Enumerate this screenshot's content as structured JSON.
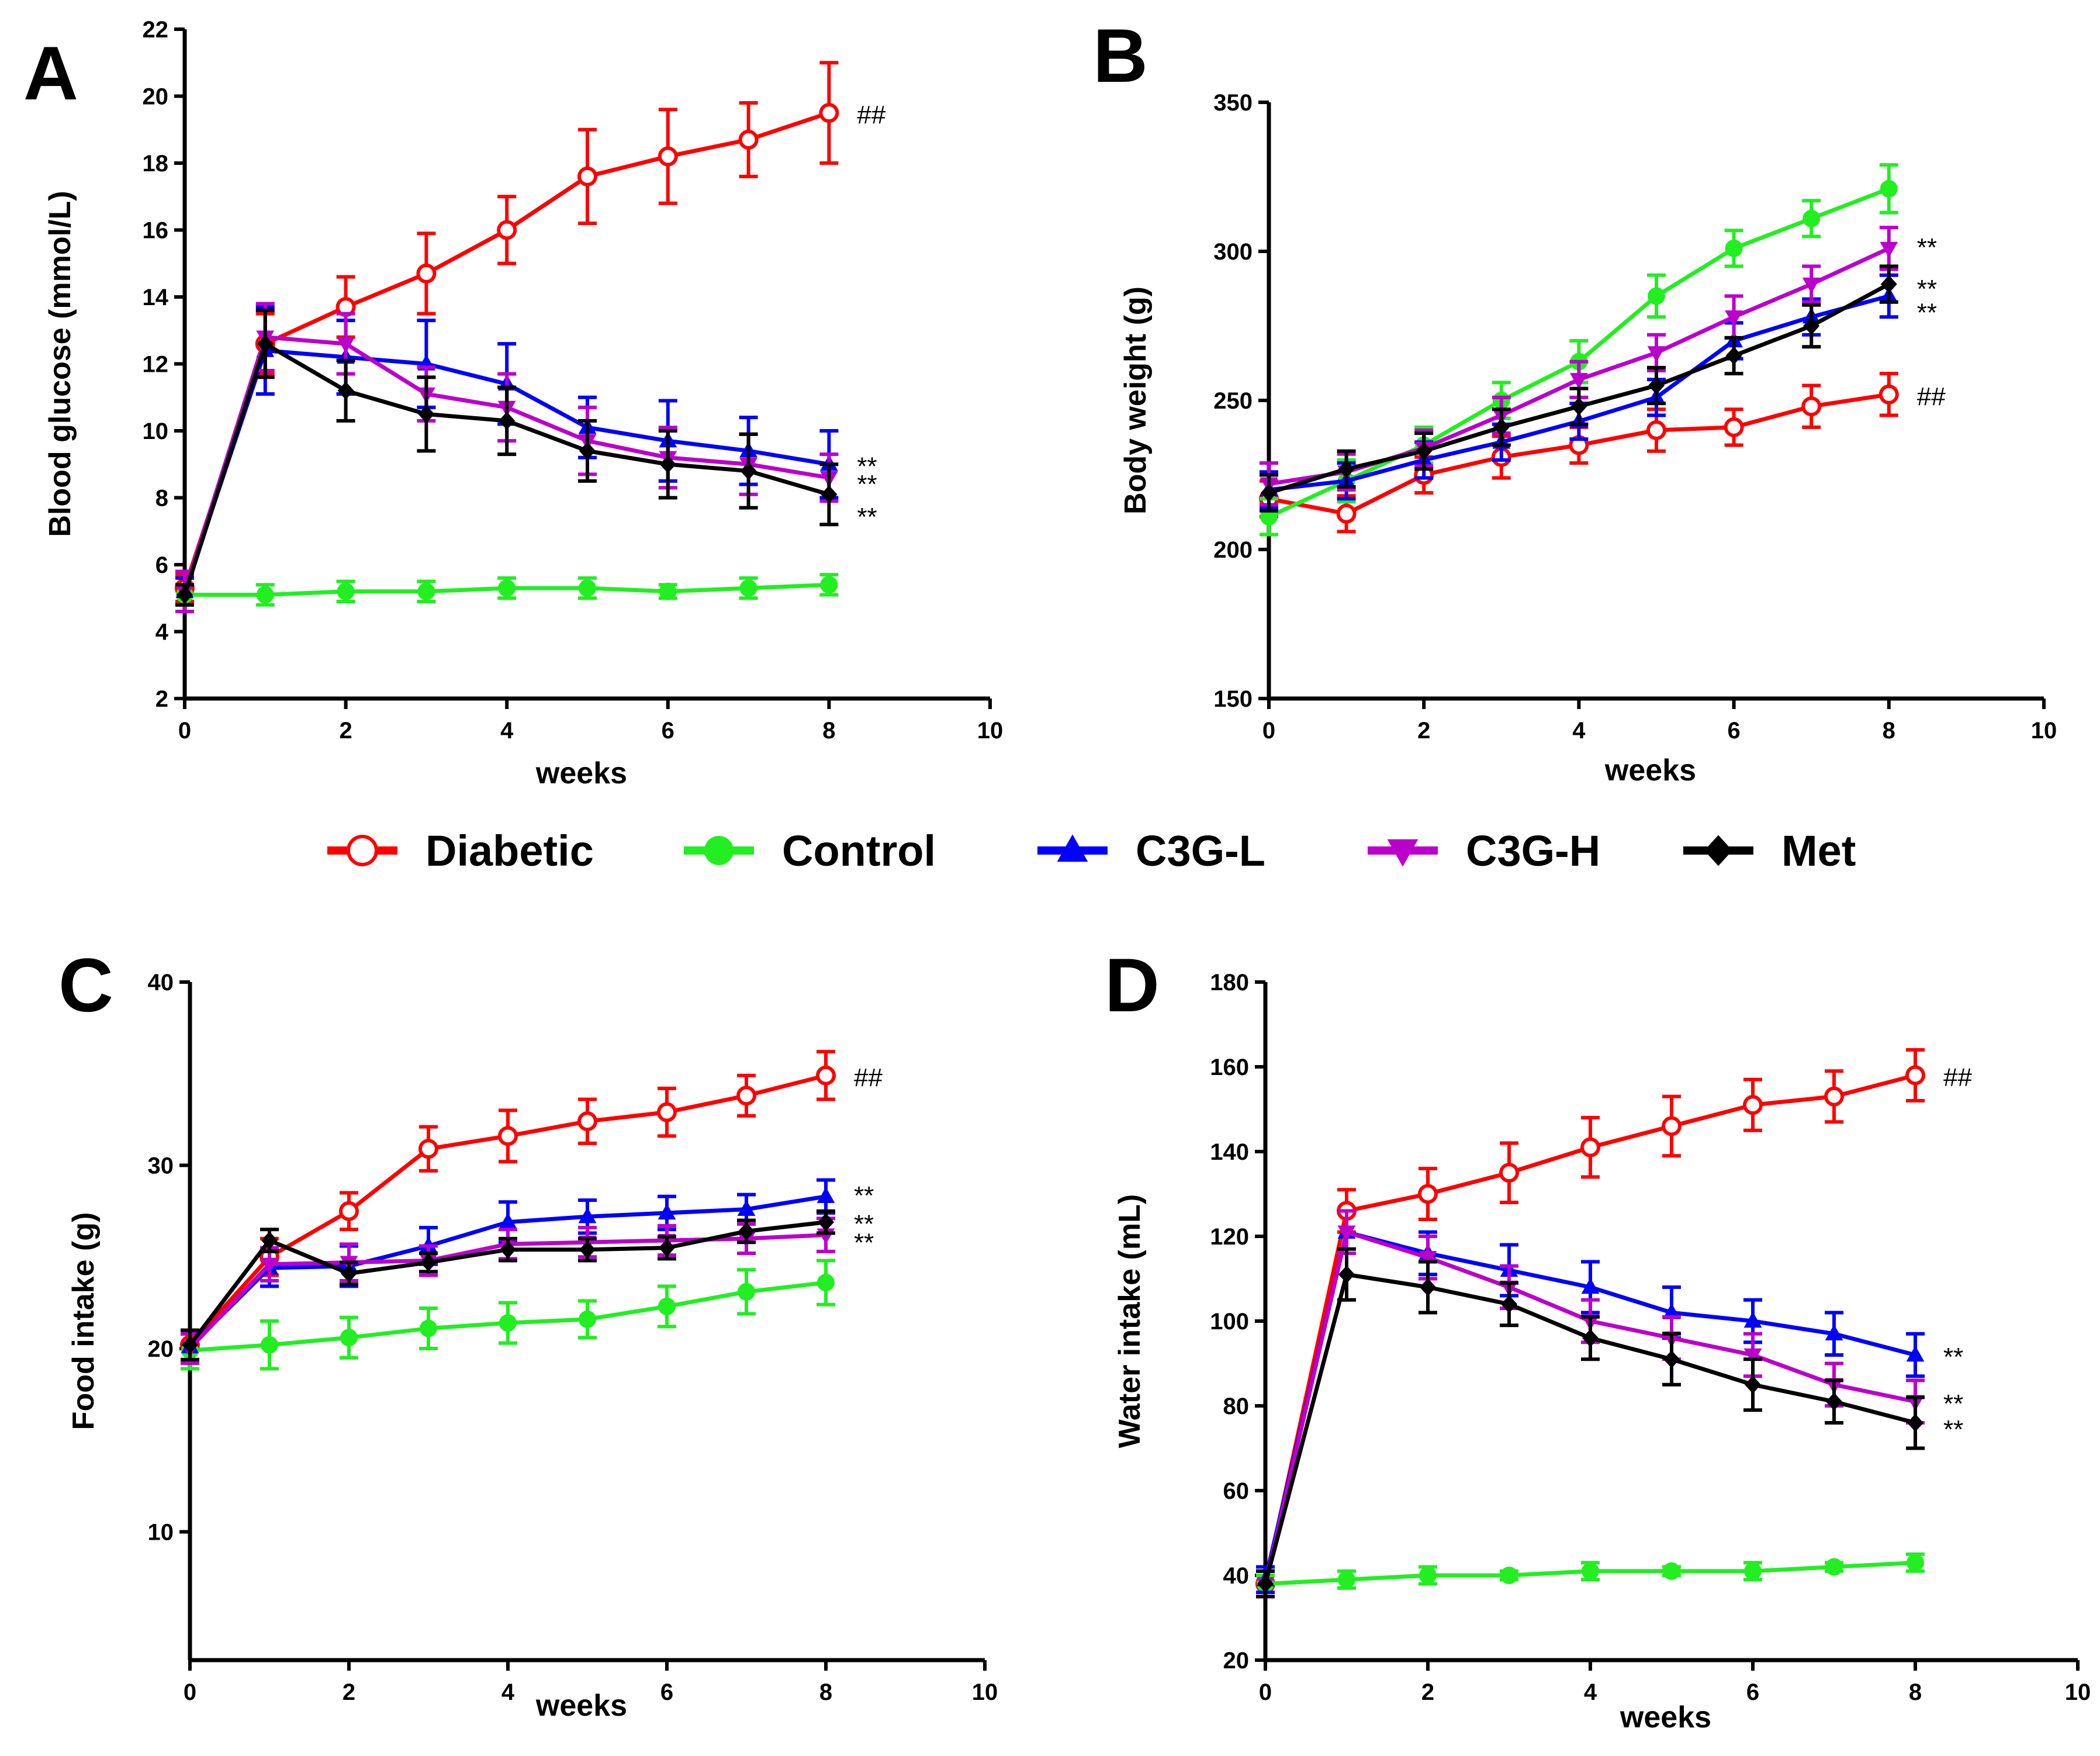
{
  "colors": {
    "Diabetic": "#ff0000",
    "Control": "#22ee22",
    "C3G-L": "#0000ff",
    "C3G-H": "#bb00cc",
    "Met": "#000000"
  },
  "legend": {
    "items": [
      {
        "name": "Diabetic",
        "marker": "open-circle"
      },
      {
        "name": "Control",
        "marker": "filled-circle"
      },
      {
        "name": "C3G-L",
        "marker": "triangle-up"
      },
      {
        "name": "C3G-H",
        "marker": "triangle-down"
      },
      {
        "name": "Met",
        "marker": "diamond"
      }
    ]
  },
  "chart_data": [
    {
      "panel": "A",
      "type": "line",
      "xlabel": "weeks",
      "ylabel": "Blood glucose (mmol/L)",
      "xlim": [
        0,
        10
      ],
      "ylim": [
        2,
        22
      ],
      "xticks": [
        0,
        2,
        4,
        6,
        8,
        10
      ],
      "yticks": [
        2,
        4,
        6,
        8,
        10,
        12,
        14,
        16,
        18,
        20,
        22
      ],
      "x": [
        0,
        1,
        2,
        3,
        4,
        5,
        6,
        7,
        8
      ],
      "series": [
        {
          "name": "Diabetic",
          "values": [
            5.3,
            12.6,
            13.7,
            14.7,
            16.0,
            17.6,
            18.2,
            18.7,
            19.5
          ],
          "errors": [
            0.4,
            0.9,
            0.9,
            1.2,
            1.0,
            1.4,
            1.4,
            1.1,
            1.5
          ]
        },
        {
          "name": "Control",
          "values": [
            5.1,
            5.1,
            5.2,
            5.2,
            5.3,
            5.3,
            5.2,
            5.3,
            5.4
          ],
          "errors": [
            0.3,
            0.3,
            0.3,
            0.3,
            0.3,
            0.3,
            0.2,
            0.3,
            0.3
          ]
        },
        {
          "name": "C3G-L",
          "values": [
            5.2,
            12.4,
            12.2,
            12.0,
            11.4,
            10.1,
            9.7,
            9.4,
            9.0
          ],
          "errors": [
            0.4,
            1.3,
            1.1,
            1.3,
            1.2,
            0.9,
            1.2,
            1.0,
            1.0
          ]
        },
        {
          "name": "C3G-H",
          "values": [
            5.2,
            12.8,
            12.6,
            11.1,
            10.7,
            9.7,
            9.2,
            9.0,
            8.6
          ],
          "errors": [
            0.6,
            1.0,
            0.9,
            0.8,
            1.0,
            1.0,
            0.9,
            0.9,
            0.7
          ]
        },
        {
          "name": "Met",
          "values": [
            5.1,
            12.6,
            11.2,
            10.5,
            10.3,
            9.4,
            9.0,
            8.8,
            8.1
          ],
          "errors": [
            0.3,
            1.0,
            0.9,
            1.1,
            1.0,
            0.9,
            1.0,
            1.1,
            0.9
          ]
        }
      ],
      "annotations": [
        {
          "text": "##",
          "series": "Diabetic"
        },
        {
          "text": "**",
          "series": "C3G-L"
        },
        {
          "text": "**",
          "series": "C3G-H"
        },
        {
          "text": "**",
          "series": "Met"
        }
      ]
    },
    {
      "panel": "B",
      "type": "line",
      "xlabel": "weeks",
      "ylabel": "Body weight (g)",
      "xlim": [
        0,
        10
      ],
      "ylim": [
        150,
        350
      ],
      "xticks": [
        0,
        2,
        4,
        6,
        8,
        10
      ],
      "yticks": [
        150,
        200,
        250,
        300,
        350
      ],
      "x": [
        0,
        1,
        2,
        3,
        4,
        5,
        6,
        7,
        8
      ],
      "series": [
        {
          "name": "Diabetic",
          "values": [
            217,
            212,
            225,
            231,
            235,
            240,
            241,
            248,
            252
          ],
          "errors": [
            6,
            6,
            6,
            7,
            6,
            7,
            6,
            7,
            7
          ]
        },
        {
          "name": "Control",
          "values": [
            211,
            223,
            235,
            250,
            263,
            285,
            301,
            311,
            321
          ],
          "errors": [
            6,
            7,
            6,
            6,
            7,
            7,
            6,
            6,
            8
          ]
        },
        {
          "name": "C3G-L",
          "values": [
            220,
            223,
            230,
            236,
            243,
            251,
            270,
            278,
            285
          ],
          "errors": [
            6,
            6,
            6,
            6,
            6,
            6,
            6,
            6,
            7
          ]
        },
        {
          "name": "C3G-H",
          "values": [
            222,
            226,
            234,
            245,
            257,
            266,
            278,
            289,
            301
          ],
          "errors": [
            7,
            6,
            6,
            6,
            6,
            6,
            7,
            6,
            7
          ]
        },
        {
          "name": "Met",
          "values": [
            219,
            227,
            233,
            241,
            248,
            255,
            265,
            275,
            289
          ],
          "errors": [
            6,
            6,
            6,
            6,
            6,
            6,
            6,
            7,
            6
          ]
        }
      ],
      "annotations": [
        {
          "text": "**",
          "series": "C3G-H"
        },
        {
          "text": "**",
          "series": "Met"
        },
        {
          "text": "**",
          "series": "C3G-L"
        },
        {
          "text": "##",
          "series": "Diabetic"
        }
      ]
    },
    {
      "panel": "C",
      "type": "line",
      "xlabel": "weeks",
      "ylabel": "Food intake (g)",
      "xlim": [
        0,
        10
      ],
      "ylim": [
        3,
        40
      ],
      "xticks": [
        0,
        2,
        4,
        6,
        8,
        10
      ],
      "yticks": [
        10,
        20,
        30,
        40
      ],
      "x": [
        0,
        1,
        2,
        3,
        4,
        5,
        6,
        7,
        8
      ],
      "series": [
        {
          "name": "Diabetic",
          "values": [
            20.2,
            25.0,
            27.5,
            30.9,
            31.6,
            32.4,
            32.9,
            33.8,
            34.9
          ],
          "errors": [
            0.8,
            1.0,
            1.0,
            1.2,
            1.4,
            1.2,
            1.3,
            1.1,
            1.3
          ]
        },
        {
          "name": "Control",
          "values": [
            19.9,
            20.2,
            20.6,
            21.1,
            21.4,
            21.6,
            22.3,
            23.1,
            23.6
          ],
          "errors": [
            1.0,
            1.3,
            1.1,
            1.1,
            1.1,
            1.0,
            1.1,
            1.2,
            1.2
          ]
        },
        {
          "name": "C3G-L",
          "values": [
            20.1,
            24.4,
            24.5,
            25.6,
            26.9,
            27.2,
            27.4,
            27.6,
            28.3
          ],
          "errors": [
            0.8,
            1.0,
            1.1,
            1.0,
            1.1,
            0.9,
            0.9,
            0.8,
            0.9
          ]
        },
        {
          "name": "C3G-H",
          "values": [
            20.0,
            24.6,
            24.7,
            24.8,
            25.7,
            25.8,
            25.9,
            26.0,
            26.2
          ],
          "errors": [
            0.8,
            0.9,
            1.0,
            0.8,
            0.8,
            0.8,
            0.8,
            0.8,
            0.9
          ]
        },
        {
          "name": "Met",
          "values": [
            20.2,
            25.9,
            24.1,
            24.7,
            25.4,
            25.4,
            25.5,
            26.4,
            26.9
          ],
          "errors": [
            0.8,
            0.6,
            0.6,
            0.5,
            0.6,
            0.6,
            0.6,
            0.6,
            0.6
          ]
        }
      ],
      "annotations": [
        {
          "text": "##",
          "series": "Diabetic"
        },
        {
          "text": "**",
          "series": "C3G-L"
        },
        {
          "text": "**",
          "series": "Met"
        },
        {
          "text": "**",
          "series": "C3G-H"
        }
      ]
    },
    {
      "panel": "D",
      "type": "line",
      "xlabel": "weeks",
      "ylabel": "Water intake (mL)",
      "xlim": [
        0,
        10
      ],
      "ylim": [
        20,
        180
      ],
      "xticks": [
        0,
        2,
        4,
        6,
        8,
        10
      ],
      "yticks": [
        20,
        40,
        60,
        80,
        100,
        120,
        140,
        160,
        180
      ],
      "x": [
        0,
        1,
        2,
        3,
        4,
        5,
        6,
        7,
        8
      ],
      "series": [
        {
          "name": "Diabetic",
          "values": [
            38,
            126,
            130,
            135,
            141,
            146,
            151,
            153,
            158
          ],
          "errors": [
            3,
            5,
            6,
            7,
            7,
            7,
            6,
            6,
            6
          ]
        },
        {
          "name": "Control",
          "values": [
            38,
            39,
            40,
            40,
            41,
            41,
            41,
            42,
            43
          ],
          "errors": [
            2,
            2,
            2,
            1,
            2,
            1,
            2,
            1,
            2
          ]
        },
        {
          "name": "C3G-L",
          "values": [
            39,
            121,
            116,
            112,
            108,
            102,
            100,
            97,
            92
          ],
          "errors": [
            3,
            5,
            5,
            6,
            6,
            6,
            5,
            5,
            5
          ]
        },
        {
          "name": "C3G-H",
          "values": [
            38,
            121,
            115,
            108,
            100,
            96,
            92,
            85,
            81
          ],
          "errors": [
            3,
            5,
            5,
            5,
            5,
            5,
            5,
            5,
            5
          ]
        },
        {
          "name": "Met",
          "values": [
            38,
            111,
            108,
            104,
            96,
            91,
            85,
            81,
            76
          ],
          "errors": [
            3,
            6,
            6,
            5,
            5,
            6,
            6,
            5,
            6
          ]
        }
      ],
      "annotations": [
        {
          "text": "##",
          "series": "Diabetic"
        },
        {
          "text": "**",
          "series": "C3G-L"
        },
        {
          "text": "**",
          "series": "C3G-H"
        },
        {
          "text": "**",
          "series": "Met"
        }
      ]
    }
  ]
}
